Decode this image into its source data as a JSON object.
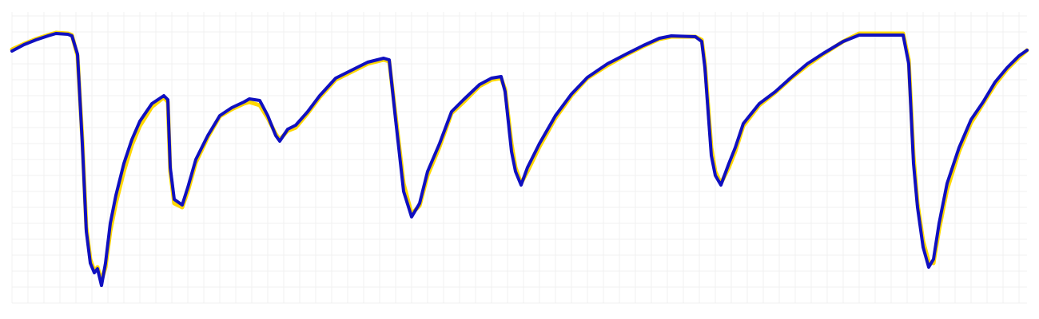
{
  "chart_data": {
    "type": "line",
    "x": [
      0,
      15,
      30,
      45,
      55,
      70,
      75,
      82,
      88,
      93,
      98,
      103,
      107,
      112,
      117,
      123,
      130,
      140,
      150,
      160,
      175,
      190,
      195,
      198,
      203,
      213,
      220,
      230,
      245,
      260,
      275,
      290,
      297,
      310,
      320,
      330,
      335,
      345,
      355,
      370,
      385,
      405,
      425,
      445,
      465,
      472,
      480,
      490,
      500,
      510,
      520,
      535,
      550,
      565,
      585,
      600,
      612,
      617,
      625,
      630,
      637,
      645,
      660,
      680,
      700,
      720,
      745,
      770,
      790,
      810,
      825,
      855,
      863,
      867,
      875,
      880,
      887,
      897,
      905,
      915,
      935,
      955,
      975,
      995,
      1015,
      1040,
      1060,
      1115,
      1122,
      1128,
      1133,
      1140,
      1147,
      1153,
      1160,
      1170,
      1185,
      1200,
      1215,
      1230,
      1245,
      1260,
      1270
    ],
    "series": [
      {
        "color": "#ffd700",
        "values": [
          318,
          325,
          331,
          336,
          339,
          338,
          336,
          310,
          205,
          95,
          55,
          40,
          45,
          28,
          45,
          90,
          125,
          165,
          198,
          222,
          246,
          258,
          252,
          165,
          125,
          120,
          140,
          176,
          208,
          234,
          243,
          250,
          252,
          248,
          232,
          212,
          205,
          216,
          220,
          238,
          258,
          280,
          290,
          300,
          305,
          303,
          235,
          150,
          112,
          122,
          160,
          196,
          238,
          252,
          272,
          280,
          282,
          268,
          200,
          170,
          150,
          165,
          196,
          232,
          260,
          282,
          298,
          312,
          322,
          331,
          334,
          334,
          330,
          300,
          195,
          165,
          150,
          170,
          190,
          222,
          248,
          264,
          282,
          298,
          312,
          328,
          338,
          338,
          305,
          185,
          125,
          78,
          52,
          50,
          92,
          142,
          190,
          226,
          250,
          274,
          293,
          308,
          317
        ]
      },
      {
        "color": "#1010c0",
        "values": [
          316,
          324,
          330,
          335,
          338,
          337,
          335,
          312,
          200,
          90,
          50,
          38,
          43,
          22,
          50,
          100,
          135,
          175,
          205,
          228,
          250,
          260,
          255,
          170,
          130,
          123,
          145,
          180,
          210,
          235,
          245,
          252,
          256,
          254,
          235,
          210,
          203,
          218,
          223,
          240,
          260,
          282,
          292,
          302,
          307,
          305,
          230,
          140,
          108,
          125,
          165,
          200,
          240,
          255,
          274,
          282,
          284,
          265,
          190,
          165,
          148,
          170,
          200,
          235,
          262,
          283,
          300,
          313,
          323,
          332,
          335,
          334,
          328,
          295,
          185,
          160,
          148,
          175,
          195,
          225,
          250,
          265,
          283,
          300,
          313,
          328,
          336,
          336,
          300,
          175,
          120,
          70,
          45,
          55,
          100,
          150,
          195,
          230,
          252,
          277,
          295,
          310,
          317
        ]
      }
    ],
    "xlim": [
      0,
      1270
    ],
    "ylim": [
      0,
      365
    ],
    "xticks": [
      0,
      20,
      40,
      60,
      80,
      100,
      120,
      140,
      160,
      180,
      200,
      220,
      240,
      260,
      280,
      300,
      320,
      340,
      360,
      380,
      400,
      420,
      440,
      460,
      480,
      500,
      520,
      540,
      560,
      580,
      600,
      620,
      640,
      660,
      680,
      700,
      720,
      740,
      760,
      780,
      800,
      820,
      840,
      860,
      880,
      900,
      920,
      940,
      960,
      980,
      1000,
      1020,
      1040,
      1060,
      1080,
      1100,
      1120,
      1140,
      1160,
      1180,
      1200,
      1220,
      1240,
      1260
    ],
    "yticks": [
      0,
      20,
      40,
      60,
      80,
      100,
      120,
      140,
      160,
      180,
      200,
      220,
      240,
      260,
      280,
      300,
      320,
      340,
      360
    ],
    "grid": true
  }
}
